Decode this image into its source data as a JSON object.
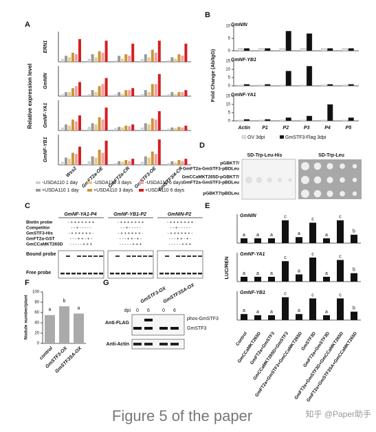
{
  "panels": {
    "A": {
      "label": "A",
      "ylabel": "Relative expression level",
      "groups": [
        "Wss2",
        "GmFT2a-OE",
        "GmFT2a-CR",
        "GmSTF3-OE",
        "GmSTF3/4-CR"
      ],
      "legend": [
        {
          "name": "-USDA110 1 day",
          "color": "#d0d0d0"
        },
        {
          "name": "+USDA110 1 day",
          "color": "#9a9a9a"
        },
        {
          "name": "-USDA110 3 days",
          "color": "#e8c98a"
        },
        {
          "name": "+USDA110 3 days",
          "color": "#c8963c"
        },
        {
          "name": "-USDA110 6 days",
          "color": "#f2a0a0"
        },
        {
          "name": "+USDA110 6 days",
          "color": "#d42020"
        }
      ],
      "rows": [
        {
          "gene": "ERN1",
          "ylim": [
            0,
            20
          ],
          "values": [
            [
              2,
              4,
              3,
              6,
              5,
              15
            ],
            [
              2,
              5,
              3,
              7,
              6,
              14
            ],
            [
              1,
              4,
              2,
              5,
              4,
              12
            ],
            [
              2,
              5,
              3,
              8,
              6,
              14
            ],
            [
              1,
              3,
              2,
              5,
              4,
              12
            ]
          ]
        },
        {
          "gene": "GmNIN",
          "ylim": [
            0,
            15
          ],
          "values": [
            [
              1,
              2,
              2,
              4,
              5,
              7
            ],
            [
              1,
              3,
              2,
              5,
              6,
              9
            ],
            [
              1,
              2,
              1,
              3,
              3,
              4
            ],
            [
              1,
              3,
              2,
              6,
              6,
              11
            ],
            [
              1,
              2,
              1,
              2,
              2,
              3
            ]
          ]
        },
        {
          "gene": "GmNF-YA1",
          "ylim": [
            0,
            50
          ],
          "values": [
            [
              5,
              10,
              8,
              18,
              15,
              25
            ],
            [
              6,
              12,
              10,
              22,
              18,
              38
            ],
            [
              4,
              6,
              5,
              8,
              7,
              10
            ],
            [
              5,
              12,
              10,
              20,
              18,
              32
            ],
            [
              3,
              5,
              4,
              6,
              5,
              8
            ]
          ]
        },
        {
          "gene": "GmNF-YB1",
          "ylim": [
            0,
            50
          ],
          "values": [
            [
              5,
              12,
              10,
              20,
              18,
              30
            ],
            [
              6,
              14,
              12,
              25,
              20,
              40
            ],
            [
              3,
              6,
              5,
              8,
              6,
              10
            ],
            [
              5,
              14,
              12,
              22,
              18,
              42
            ],
            [
              3,
              6,
              4,
              8,
              6,
              10
            ]
          ]
        }
      ]
    },
    "B": {
      "label": "B",
      "ylabel": "Fold Change (Ab/IgG)",
      "categories": [
        "Actin",
        "P1",
        "P2",
        "P3",
        "P4",
        "P5"
      ],
      "legend": [
        {
          "name": "OV 3dpi",
          "color": "#dddddd"
        },
        {
          "name": "GmSTF3-Flag 3dpi",
          "color": "#111111"
        }
      ],
      "charts": [
        {
          "title": "GmNIN",
          "ylim": [
            0,
            10
          ],
          "yticks": [
            0,
            5,
            10
          ],
          "series": [
            [
              1,
              1,
              1,
              1,
              1,
              1
            ],
            [
              1,
              1,
              8,
              7,
              1,
              1
            ]
          ]
        },
        {
          "title": "GmNF-YB1",
          "ylim": [
            0,
            15
          ],
          "yticks": [
            0,
            5,
            10,
            15
          ],
          "series": [
            [
              0.5,
              0.5,
              0.5,
              0.5,
              0.5,
              0.5
            ],
            [
              1,
              1,
              9,
              12,
              1,
              1
            ]
          ]
        },
        {
          "title": "GmNF-YA1",
          "ylim": [
            0,
            15
          ],
          "yticks": [
            0,
            5,
            10,
            15
          ],
          "series": [
            [
              0.5,
              0.5,
              0.5,
              0.5,
              0.5,
              0.5
            ],
            [
              1,
              1,
              2,
              3,
              10,
              2
            ]
          ]
        }
      ]
    },
    "C": {
      "label": "C",
      "gels": [
        "GmNF-YA1-P4",
        "GmNF-YB1-P2",
        "GmNIN-P2"
      ],
      "rows": [
        {
          "name": "Biotin probe",
          "signs": "- + + + + + + +"
        },
        {
          "name": "Competitor",
          "signs": "- - + - - - - -"
        },
        {
          "name": "GmSTF3-His",
          "signs": "- + + + + + + -"
        },
        {
          "name": "GmFT2a-GST",
          "signs": "- - - + + - + -"
        },
        {
          "name": "GmCCaMKT265D",
          "signs": "- - - - - + + +"
        }
      ],
      "bound": "Bound probe",
      "free": "Free probe"
    },
    "D": {
      "label": "D",
      "media": [
        "SD-Trp-Leu-His",
        "SD-Trp-Leu"
      ],
      "rows": [
        [
          "pGBKT7/",
          "GmFT2a-GmSTF3-pBDLeu"
        ],
        [
          "GmCCaMKT265D-pGBKT7/",
          "GmFT2a-GmSTF3-pBDLeu"
        ],
        [
          "pGBKT7/pBDLeu"
        ]
      ]
    },
    "E": {
      "label": "E",
      "ylabel": "LUC/REN",
      "ylim": [
        0,
        1.2
      ],
      "color": "#111111",
      "categories": [
        "Control",
        "GmCCaMKT265D",
        "GmFT2a+GmSTF3",
        "GmCCaMKT265D+GmSTF3",
        "GmFT2a+GmSTF3+GmCCaMKT265D",
        "GmSTF3D",
        "GmFT2a+GmSTF3D",
        "GmFT2a+GmSTF3D+GmCCaMKT265D",
        "GmFT2a+GmSTF3SA+GmCCaMKT265D"
      ],
      "charts": [
        {
          "title": "GmNIN",
          "values": [
            0.2,
            0.2,
            0.2,
            0.95,
            0.25,
            0.85,
            0.2,
            0.95,
            0.35
          ],
          "letters": [
            "a",
            "a",
            "a",
            "c",
            "a",
            "c",
            "a",
            "c",
            "b"
          ]
        },
        {
          "title": "GmNF-YA1",
          "values": [
            0.2,
            0.2,
            0.2,
            0.85,
            0.3,
            1.0,
            0.2,
            0.9,
            0.35
          ],
          "letters": [
            "a",
            "a",
            "a",
            "c",
            "a",
            "c",
            "a",
            "c",
            "b"
          ]
        },
        {
          "title": "GmNF-YB1",
          "values": [
            0.25,
            0.2,
            0.2,
            0.95,
            0.25,
            0.9,
            0.2,
            0.9,
            0.35
          ],
          "letters": [
            "a",
            "a",
            "a",
            "c",
            "a",
            "c",
            "a",
            "c",
            "b"
          ]
        }
      ]
    },
    "F": {
      "label": "F",
      "ylabel": "Nodule number/plant",
      "color": "#aaaaaa",
      "categories": [
        "control",
        "GmSTF3-OX",
        "GmSTF3SA-OX"
      ],
      "values": [
        55,
        72,
        58
      ],
      "letters": [
        "a",
        "b",
        "a"
      ],
      "ylim": [
        0,
        100
      ],
      "yticks": [
        0,
        20,
        40,
        60,
        80,
        100
      ]
    },
    "G": {
      "label": "G",
      "lines": [
        "GmSTF3-OX",
        "GmSTF3SA-OX"
      ],
      "dpi": "dpi",
      "days": [
        "0",
        "6",
        "0",
        "6"
      ],
      "blots": [
        "Anti-FLAG",
        "Anti-Actin"
      ],
      "bands": [
        "phos-GmSTF3",
        "GmSTF3"
      ]
    }
  },
  "caption": "Figure 5 of the paper",
  "watermark": "知乎 @Paper助手"
}
